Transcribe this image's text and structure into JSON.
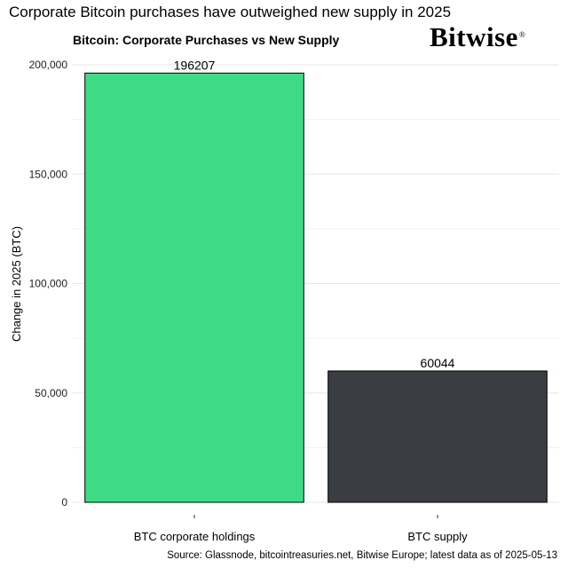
{
  "headline": "Corporate Bitcoin purchases have outweighed new supply in 2025",
  "brand": {
    "name": "Bitwise",
    "mark": "®"
  },
  "source": "Source: Glassnode, bitcointreasuries.net, Bitwise Europe; latest data as of 2025-05-13",
  "chart_data": {
    "type": "bar",
    "title": "Bitcoin: Corporate Purchases vs New Supply",
    "xlabel": "",
    "ylabel": "Change in 2025 (BTC)",
    "categories": [
      "BTC corporate holdings",
      "BTC supply"
    ],
    "values": [
      196207,
      60044
    ],
    "value_labels": [
      "196207",
      "60044"
    ],
    "colors": [
      "#3ddc84",
      "#3a3d41"
    ],
    "ylim": [
      0,
      200000
    ],
    "yticks": [
      0,
      50000,
      100000,
      150000,
      200000
    ],
    "ytick_labels": [
      "0",
      "50,000",
      "100,000",
      "150,000",
      "200,000"
    ],
    "grid": true,
    "legend": "none"
  }
}
